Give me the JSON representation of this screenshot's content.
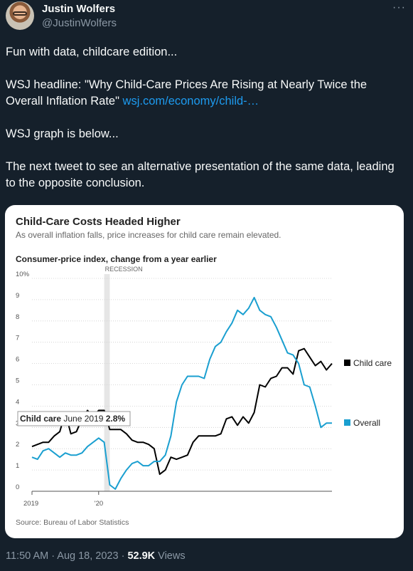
{
  "tweet": {
    "author_name": "Justin Wolfers",
    "handle": "@JustinWolfers",
    "more": "···",
    "line1": "Fun with data, childcare edition...",
    "line2_prefix": "WSJ headline: \"Why Child-Care Prices Are Rising at Nearly Twice the Overall Inflation Rate\" ",
    "link_text": "wsj.com/economy/child-…",
    "line3": "WSJ graph is below...",
    "line4": "The next tweet to see an alternative presentation of the same data, leading to the opposite conclusion.",
    "time": "11:50 AM · Aug 18, 2023 · ",
    "views_count": "52.9K",
    "views_label": " Views"
  },
  "card": {
    "title": "Child-Care Costs Headed Higher",
    "subtitle": "As overall inflation falls, price increases for child care remain elevated.",
    "ylabel": "Consumer-price index, change from a year earlier",
    "source": "Source: Bureau of Labor Statistics",
    "recession_label": "RECESSION",
    "tooltip_series": "Child care",
    "tooltip_date": " June 2019 ",
    "tooltip_value": "2.8%"
  },
  "chart_data": {
    "type": "line",
    "ylabel": "Consumer-price index, change from a year earlier",
    "ylim": [
      0,
      10
    ],
    "y_ticks": [
      "0",
      "1",
      "2",
      "3",
      "4",
      "5",
      "6",
      "7",
      "8",
      "9",
      "10%"
    ],
    "x_ticks": [
      {
        "x": 0,
        "label": "2019"
      },
      {
        "x": 12,
        "label": "'20"
      }
    ],
    "x_note": "months since Jan 2019",
    "recession": [
      13,
      14
    ],
    "legend_placement": "right",
    "series": [
      {
        "name": "Child care",
        "color": "#000000",
        "x": [
          0,
          1,
          2,
          3,
          4,
          5,
          6,
          7,
          8,
          9,
          10,
          11,
          12,
          13,
          14,
          15,
          16,
          17,
          18,
          19,
          20,
          21,
          22,
          23,
          24,
          25,
          26,
          27,
          28,
          29,
          30,
          31,
          32,
          33,
          34,
          35,
          36,
          37,
          38,
          39,
          40,
          41,
          42,
          43,
          44,
          45,
          46,
          47,
          48,
          49,
          50,
          51,
          52,
          53,
          54
        ],
        "values": [
          2.1,
          2.2,
          2.3,
          2.3,
          2.6,
          2.8,
          3.7,
          2.7,
          2.8,
          3.4,
          3.8,
          3.5,
          3.8,
          3.8,
          2.9,
          2.9,
          2.9,
          2.7,
          2.4,
          2.3,
          2.3,
          2.2,
          2.0,
          0.8,
          1.0,
          1.6,
          1.5,
          1.6,
          1.7,
          2.3,
          2.6,
          2.6,
          2.6,
          2.6,
          2.7,
          3.4,
          3.5,
          3.1,
          3.5,
          3.2,
          3.7,
          5.0,
          4.9,
          5.3,
          5.4,
          5.8,
          5.8,
          5.5,
          6.6,
          6.7,
          6.3,
          5.9,
          6.1,
          5.7,
          6.0
        ]
      },
      {
        "name": "Overall",
        "color": "#1a9fd0",
        "x": [
          0,
          1,
          2,
          3,
          4,
          5,
          6,
          7,
          8,
          9,
          10,
          11,
          12,
          13,
          14,
          15,
          16,
          17,
          18,
          19,
          20,
          21,
          22,
          23,
          24,
          25,
          26,
          27,
          28,
          29,
          30,
          31,
          32,
          33,
          34,
          35,
          36,
          37,
          38,
          39,
          40,
          41,
          42,
          43,
          44,
          45,
          46,
          47,
          48,
          49,
          50,
          51,
          52,
          53,
          54
        ],
        "values": [
          1.6,
          1.5,
          1.9,
          2.0,
          1.8,
          1.6,
          1.8,
          1.7,
          1.7,
          1.8,
          2.1,
          2.3,
          2.5,
          2.3,
          0.3,
          0.1,
          0.6,
          1.0,
          1.3,
          1.4,
          1.2,
          1.2,
          1.4,
          1.4,
          1.7,
          2.6,
          4.2,
          5.0,
          5.4,
          5.4,
          5.4,
          5.3,
          6.2,
          6.8,
          7.0,
          7.5,
          7.9,
          8.5,
          8.3,
          8.6,
          9.1,
          8.5,
          8.3,
          8.2,
          7.7,
          7.1,
          6.5,
          6.4,
          6.0,
          5.0,
          4.9,
          4.0,
          3.0,
          3.2,
          3.2
        ]
      }
    ]
  }
}
